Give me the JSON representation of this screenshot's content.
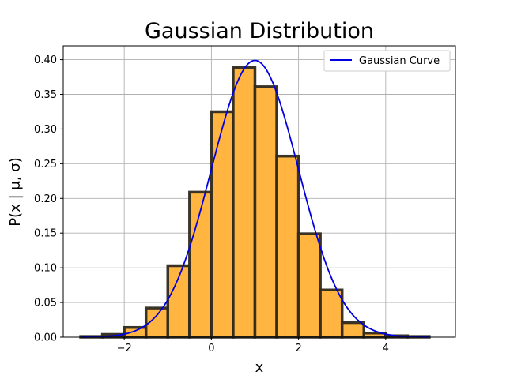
{
  "chart_data": {
    "type": "bar",
    "title": "Gaussian Distribution",
    "xlabel": "x",
    "ylabel": "P(x | μ, σ)",
    "xlim": [
      -3.4,
      5.6
    ],
    "ylim": [
      0,
      0.42
    ],
    "xticks": [
      -2,
      0,
      2,
      4
    ],
    "xtick_labels": [
      "−2",
      "0",
      "2",
      "4"
    ],
    "yticks": [
      0,
      0.05,
      0.1,
      0.15,
      0.2,
      0.25,
      0.3,
      0.35,
      0.4
    ],
    "ytick_labels": [
      "0.00",
      "0.05",
      "0.10",
      "0.15",
      "0.20",
      "0.25",
      "0.30",
      "0.35",
      "0.40"
    ],
    "grid": true,
    "legend_position": "top-right",
    "histogram": {
      "bin_edges": [
        -3.0,
        -2.5,
        -2.0,
        -1.5,
        -1.0,
        -0.5,
        0.0,
        0.5,
        1.0,
        1.5,
        2.0,
        2.5,
        3.0,
        3.5,
        4.0,
        4.5,
        5.0
      ],
      "values": [
        0.001,
        0.004,
        0.014,
        0.042,
        0.103,
        0.209,
        0.325,
        0.389,
        0.361,
        0.261,
        0.149,
        0.068,
        0.021,
        0.006,
        0.002,
        0.001
      ],
      "fill_color": "#FFB53F",
      "edge_color": "#2f2a1f"
    },
    "series": [
      {
        "name": "Gaussian Curve",
        "type": "line",
        "mean": 1.0,
        "std": 1.0,
        "x_range": [
          -3.0,
          5.0
        ],
        "color": "#0000E0"
      }
    ]
  }
}
